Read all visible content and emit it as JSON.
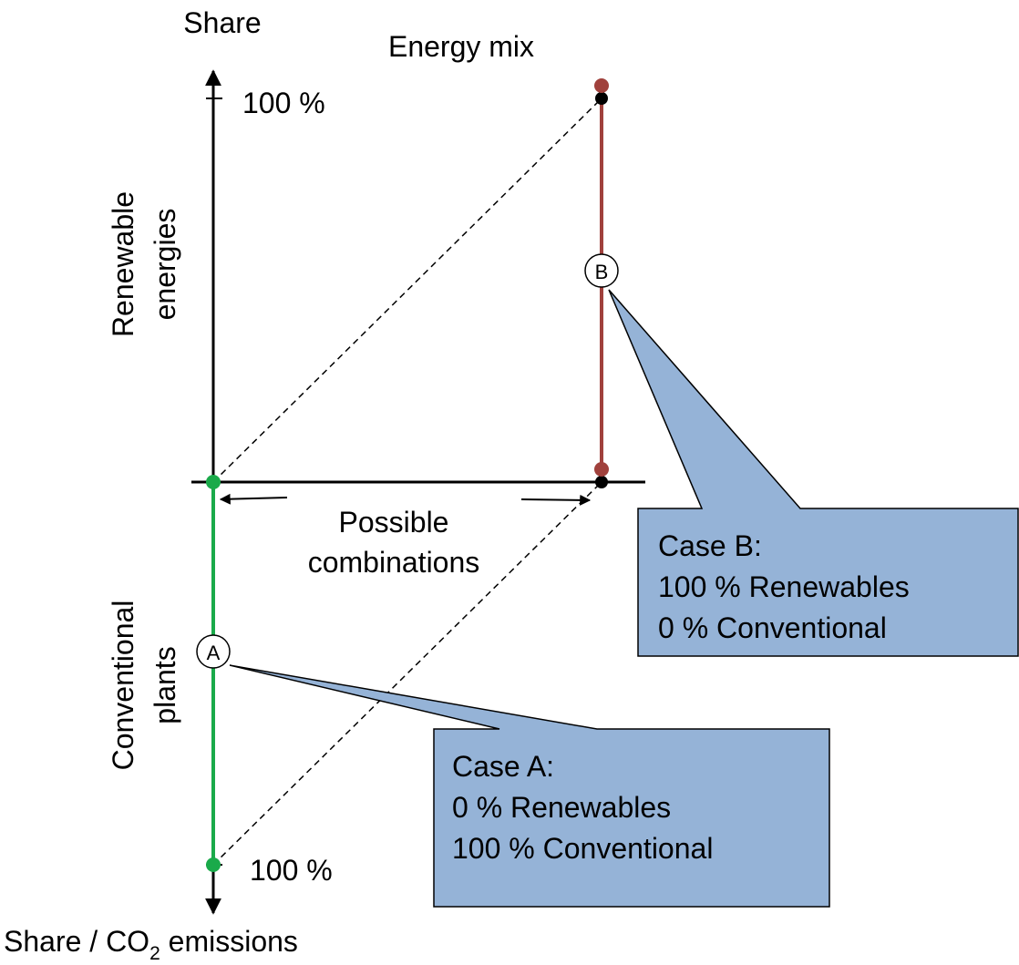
{
  "axes": {
    "y_label": "Share",
    "top_tick": "100 %",
    "bottom_tick": "100 %",
    "x_label": {
      "before": "Share / CO",
      "subscript": "2",
      "after": " emissions"
    }
  },
  "title": "Energy mix",
  "upper_label": [
    "Renewable",
    "energies"
  ],
  "lower_label": [
    "Conventional",
    "plants"
  ],
  "range_label": [
    "Possible",
    "combinations"
  ],
  "points": [
    {
      "label": "A"
    },
    {
      "label": "B"
    }
  ],
  "callouts": [
    {
      "lines": [
        "Case B:",
        "100 % Renewables",
        "0 % Conventional"
      ]
    },
    {
      "lines": [
        "Case A:",
        "0 % Renewables",
        "100 % Conventional"
      ]
    }
  ]
}
